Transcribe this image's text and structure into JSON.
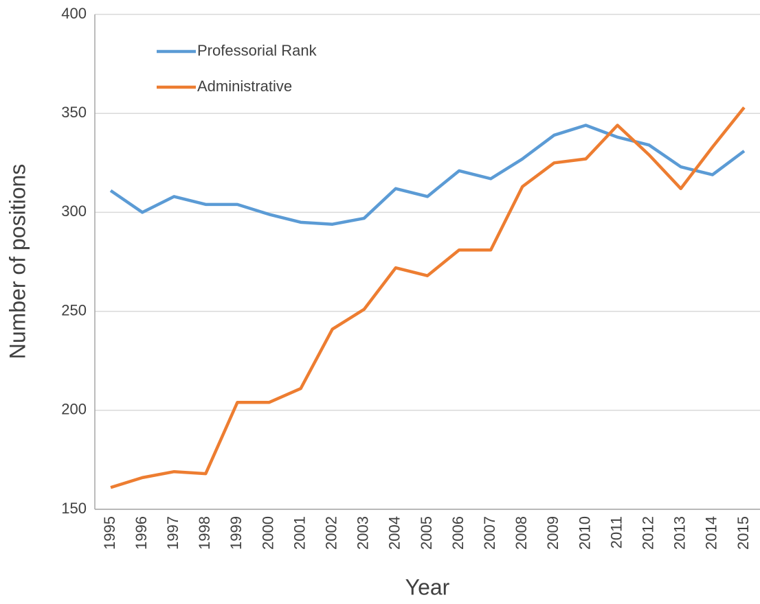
{
  "chart_data": {
    "type": "line",
    "xlabel": "Year",
    "ylabel": "Number of positions",
    "categories": [
      "1995",
      "1996",
      "1997",
      "1998",
      "1999",
      "2000",
      "2001",
      "2002",
      "2003",
      "2004",
      "2005",
      "2006",
      "2007",
      "2008",
      "2009",
      "2010",
      "2011",
      "2012",
      "2013",
      "2014",
      "2015"
    ],
    "series": [
      {
        "name": "Professorial Rank",
        "color": "#5b9bd5",
        "values": [
          311,
          300,
          308,
          304,
          304,
          299,
          295,
          294,
          297,
          312,
          308,
          321,
          317,
          327,
          339,
          344,
          338,
          334,
          323,
          319,
          331
        ]
      },
      {
        "name": "Administrative",
        "color": "#ed7d31",
        "values": [
          161,
          166,
          169,
          168,
          204,
          204,
          211,
          241,
          251,
          272,
          268,
          281,
          281,
          313,
          325,
          327,
          344,
          329,
          312,
          333,
          353
        ]
      }
    ],
    "ylim": [
      150,
      400
    ],
    "yticks": [
      150,
      200,
      250,
      300,
      350,
      400
    ],
    "grid": true,
    "legend": "upper left"
  }
}
